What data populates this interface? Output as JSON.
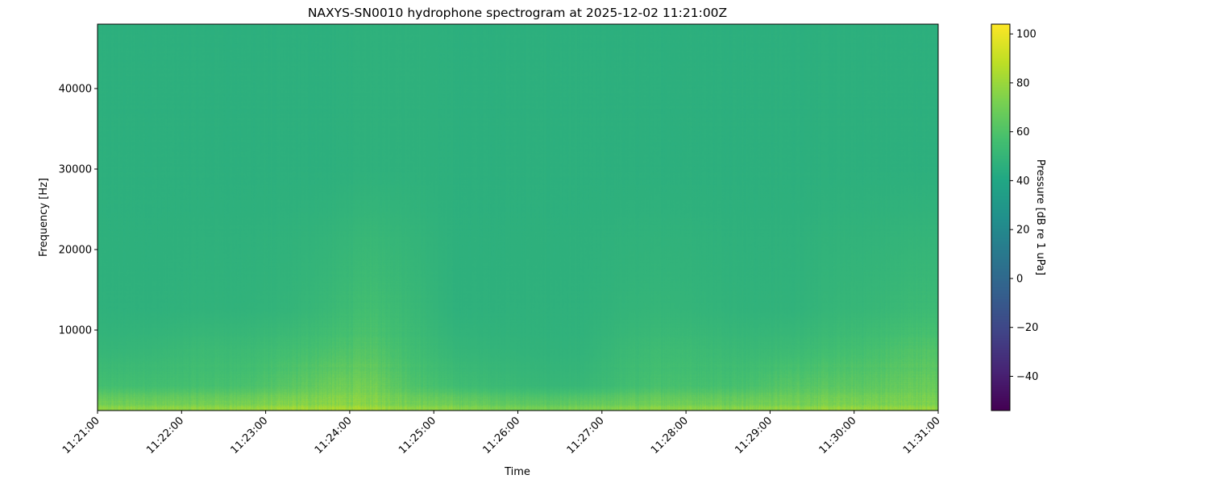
{
  "chart_data": {
    "type": "heatmap",
    "title": "NAXYS-SN0010 hydrophone spectrogram at 2025-12-02 11:21:00Z",
    "xlabel": "Time",
    "ylabel": "Frequency [Hz]",
    "xlim": [
      "11:21:00",
      "11:31:00"
    ],
    "ylim": [
      0,
      48000
    ],
    "xticks": [
      "11:21:00",
      "11:22:00",
      "11:23:00",
      "11:24:00",
      "11:25:00",
      "11:26:00",
      "11:27:00",
      "11:28:00",
      "11:29:00",
      "11:30:00",
      "11:31:00"
    ],
    "yticks": [
      10000,
      20000,
      30000,
      40000
    ],
    "grid": false,
    "colormap": "viridis",
    "colorbar": {
      "label": "Pressure [dB re 1 uPa]",
      "range": [
        -54,
        104
      ],
      "ticks": [
        -40,
        -20,
        0,
        20,
        40,
        60,
        80,
        100
      ]
    },
    "approx_levels_db": {
      "time_bins_start": [
        "11:21:00",
        "11:21:30",
        "11:22:00",
        "11:22:30",
        "11:23:00",
        "11:23:30",
        "11:24:00",
        "11:24:30",
        "11:25:00",
        "11:25:30",
        "11:26:00",
        "11:26:30",
        "11:27:00",
        "11:27:30",
        "11:28:00",
        "11:28:30",
        "11:29:00",
        "11:29:30",
        "11:30:00",
        "11:30:30"
      ],
      "bands": [
        {
          "freq_hz": 500,
          "values": [
            72,
            72,
            73,
            74,
            76,
            78,
            77,
            73,
            71,
            68,
            66,
            67,
            70,
            72,
            72,
            72,
            73,
            74,
            74,
            74
          ]
        },
        {
          "freq_hz": 3000,
          "values": [
            56,
            56,
            57,
            58,
            62,
            68,
            70,
            60,
            55,
            53,
            51,
            51,
            55,
            58,
            57,
            58,
            62,
            63,
            64,
            67
          ]
        },
        {
          "freq_hz": 7500,
          "values": [
            50,
            51,
            53,
            53,
            55,
            58,
            61,
            55,
            50,
            49,
            48,
            48,
            52,
            54,
            53,
            52,
            53,
            55,
            57,
            60
          ]
        },
        {
          "freq_hz": 12500,
          "values": [
            47,
            47,
            48,
            48,
            49,
            52,
            56,
            52,
            47,
            47,
            47,
            47,
            49,
            50,
            49,
            48,
            48,
            50,
            51,
            53
          ]
        },
        {
          "freq_hz": 30000,
          "values": [
            46,
            46,
            46,
            46,
            46,
            46,
            47,
            47,
            46,
            46,
            46,
            46,
            46,
            46,
            46,
            46,
            46,
            46,
            46,
            46
          ]
        }
      ]
    }
  }
}
